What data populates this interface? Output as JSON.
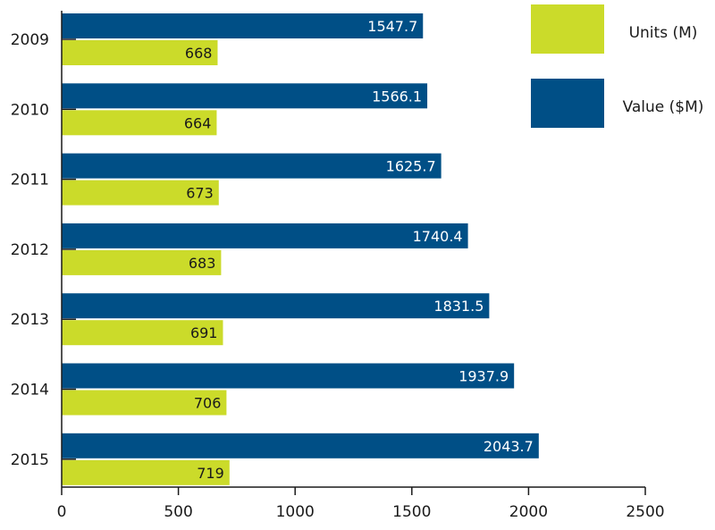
{
  "chart_data": {
    "type": "bar",
    "orientation": "horizontal",
    "title": "",
    "xlabel": "",
    "ylabel": "",
    "categories": [
      "2009",
      "2010",
      "2011",
      "2012",
      "2013",
      "2014",
      "2015"
    ],
    "series": [
      {
        "name": "Value ($M)",
        "color": "#004f86",
        "label_color": "#ffffff",
        "values": [
          1547.7,
          1566.1,
          1625.7,
          1740.4,
          1831.5,
          1937.9,
          2043.7
        ],
        "labels": [
          "1547.7",
          "1566.1",
          "1625.7",
          "1740.4",
          "1831.5",
          "1937.9",
          "2043.7"
        ]
      },
      {
        "name": "Units (M)",
        "color": "#cbdb2a",
        "label_color": "#1a1a1a",
        "values": [
          668,
          664,
          673,
          683,
          691,
          706,
          719
        ],
        "labels": [
          "668",
          "664",
          "673",
          "683",
          "691",
          "706",
          "719"
        ]
      }
    ],
    "xlim": [
      0,
      2500
    ],
    "xticks": [
      "0",
      "500",
      "1000",
      "1500",
      "2000",
      "2500"
    ],
    "grid": false,
    "legend_position": "top-right",
    "legend_order": [
      "Units (M)",
      "Value ($M)"
    ]
  }
}
